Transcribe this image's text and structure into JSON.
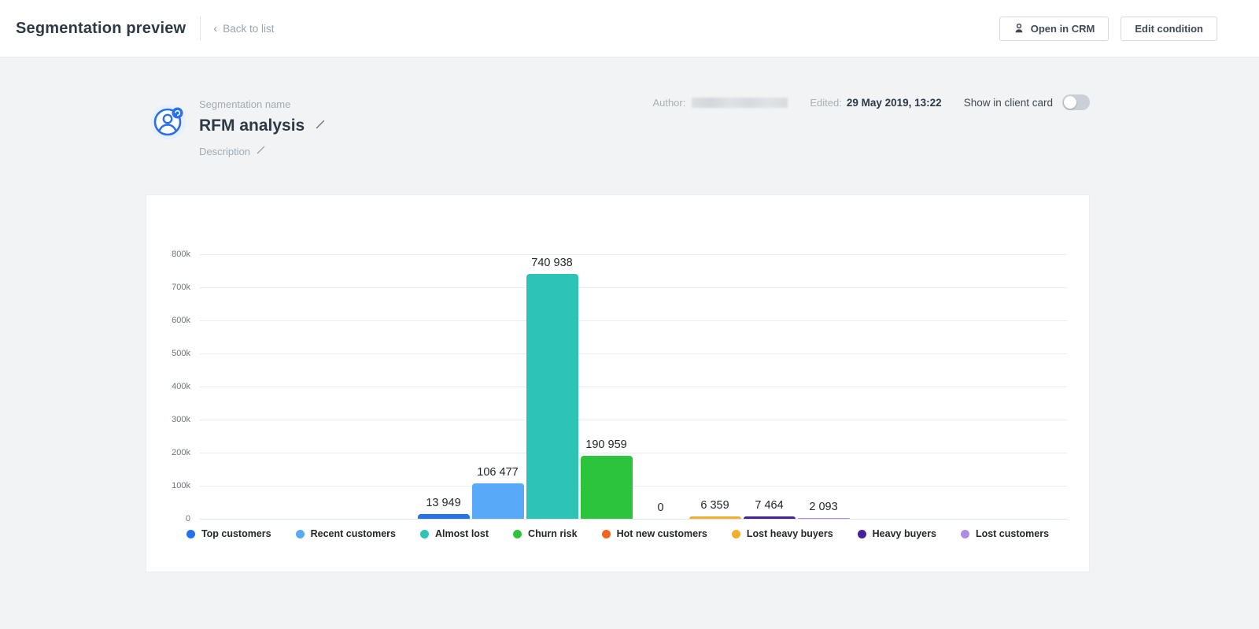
{
  "header": {
    "title": "Segmentation preview",
    "back_link": "Back to list",
    "buttons": {
      "open_in_crm": "Open in CRM",
      "edit_condition": "Edit condition"
    }
  },
  "segment": {
    "name_label": "Segmentation name",
    "name": "RFM analysis",
    "description_label": "Description"
  },
  "meta": {
    "author_label": "Author:",
    "edited_label": "Edited:",
    "edited_value": "29 May 2019, 13:22",
    "client_card_label": "Show in client card",
    "toggle_state": "off"
  },
  "chart_data": {
    "type": "bar",
    "title": "",
    "categories": [
      "Top customers",
      "Recent customers",
      "Almost lost",
      "Churn risk",
      "Hot new customers",
      "Lost heavy buyers",
      "Heavy buyers",
      "Lost customers"
    ],
    "values": [
      13949,
      106477,
      740938,
      190959,
      0,
      6359,
      7464,
      2093
    ],
    "value_labels": [
      "13 949",
      "106 477",
      "740 938",
      "190 959",
      "0",
      "6 359",
      "7 464",
      "2 093"
    ],
    "colors": [
      "#2472ed",
      "#58a9f7",
      "#2dc3b6",
      "#2cc43c",
      "#f4641d",
      "#f0b02c",
      "#45219c",
      "#b18ce6"
    ],
    "y_ticks": [
      "800k",
      "700k",
      "600k",
      "500k",
      "400k",
      "300k",
      "200k",
      "100k",
      "0"
    ],
    "ylim": [
      0,
      800000
    ],
    "grid": true,
    "legend_position": "bottom"
  }
}
